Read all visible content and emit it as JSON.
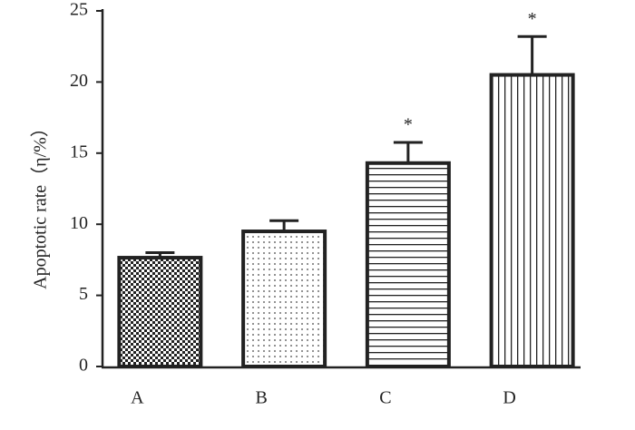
{
  "chart_data": {
    "type": "bar",
    "y_label": "Apoptotic rate（η/%）",
    "categories": [
      "A",
      "B",
      "C",
      "D"
    ],
    "values": [
      7.65,
      9.5,
      14.3,
      20.5
    ],
    "errors": [
      0.35,
      0.75,
      1.45,
      2.7
    ],
    "markers": [
      null,
      null,
      "*",
      "*"
    ],
    "patterns": [
      "checker",
      "dots",
      "hlines",
      "vlines"
    ],
    "color": "#222222",
    "ylim": [
      0,
      25
    ],
    "yticks": [
      0,
      5,
      10,
      15,
      20,
      25
    ],
    "grid": false
  }
}
